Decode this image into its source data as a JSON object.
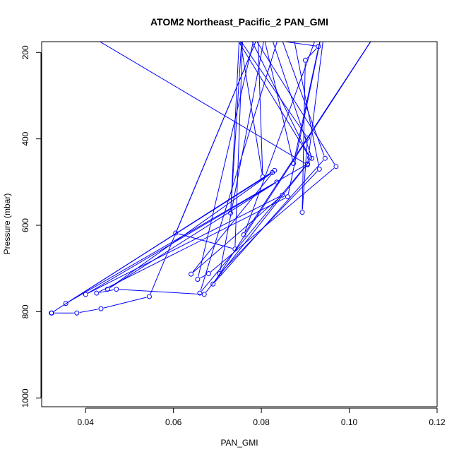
{
  "chart_data": {
    "type": "line",
    "title": "ATOM2 Northeast_Pacific_2 PAN_GMI",
    "xlabel": "PAN_GMI",
    "ylabel": "Pressure (mbar)",
    "xlim": [
      0.03,
      0.12
    ],
    "ylim": [
      1020,
      175
    ],
    "y_reversed": true,
    "x_ticks": [
      0.04,
      0.06,
      0.08,
      0.1,
      0.12
    ],
    "x_tick_labels": [
      "0.04",
      "0.06",
      "0.08",
      "0.10",
      "0.12"
    ],
    "y_ticks": [
      200,
      400,
      600,
      800,
      1000
    ],
    "y_tick_labels": [
      "200",
      "400",
      "600",
      "800",
      "1000"
    ],
    "grid": false,
    "legend": "none",
    "line_color": "#0000ff",
    "marker": "open-circle",
    "series": [
      {
        "points": [
          [
            0.0323,
            803
          ],
          [
            0.038,
            803
          ],
          [
            0.0435,
            793
          ],
          [
            0.0545,
            765
          ],
          [
            0.082,
            95
          ],
          [
            0.0605,
            618
          ],
          [
            0.074,
            655
          ],
          [
            0.076,
            95
          ],
          [
            0.073,
            572
          ],
          [
            0.075,
            160
          ],
          [
            0.0803,
            488
          ],
          [
            0.079,
            95
          ],
          [
            0.0873,
            457
          ],
          [
            0.095,
            95
          ],
          [
            0.0905,
            460
          ],
          [
            0.03,
            95
          ],
          [
            0.093,
            186
          ],
          [
            0.09,
            218
          ],
          [
            0.0893,
            570
          ],
          [
            0.0905,
            398
          ],
          [
            0.07,
            95
          ],
          [
            0.091,
            443
          ],
          [
            0.074,
            95
          ],
          [
            0.097,
            464
          ],
          [
            0.068,
            712
          ],
          [
            0.0655,
            725
          ],
          [
            0.08,
            95
          ],
          [
            0.0915,
            445
          ],
          [
            0.066,
            757
          ],
          [
            0.086,
            95
          ],
          [
            0.0932,
            470
          ],
          [
            0.0705,
            712
          ],
          [
            0.082,
            95
          ],
          [
            0.0945,
            445
          ],
          [
            0.069,
            736
          ],
          [
            0.11,
            95
          ],
          [
            0.076,
            622
          ],
          [
            0.095,
            95
          ],
          [
            0.086,
            534
          ],
          [
            0.0425,
            757
          ],
          [
            0.047,
            748
          ],
          [
            0.067,
            760
          ],
          [
            0.0905,
            458
          ],
          [
            0.0355,
            781
          ],
          [
            0.0825,
            478
          ],
          [
            0.045,
            748
          ],
          [
            0.0835,
            500
          ],
          [
            0.04,
            760
          ],
          [
            0.0848,
            530
          ],
          [
            0.064,
            713
          ],
          [
            0.083,
            473
          ],
          [
            0.0322,
            803
          ]
        ]
      }
    ]
  }
}
